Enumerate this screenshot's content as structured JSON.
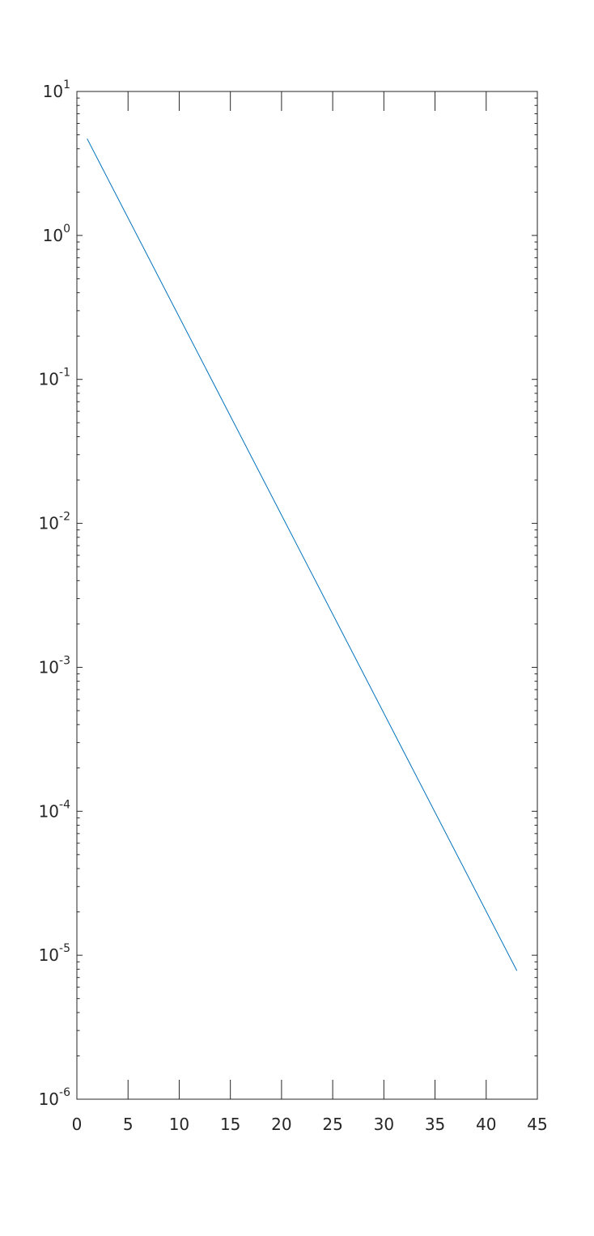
{
  "chart_data": {
    "type": "line",
    "title": "",
    "xlabel": "",
    "ylabel": "",
    "xlim": [
      0,
      45
    ],
    "ylim": [
      1e-06,
      10
    ],
    "yscale": "log",
    "grid": false,
    "x_ticks": [
      0,
      5,
      10,
      15,
      20,
      25,
      30,
      35,
      40,
      45
    ],
    "x_tick_labels": [
      "0",
      "5",
      "10",
      "15",
      "20",
      "25",
      "30",
      "35",
      "40",
      "45"
    ],
    "y_ticks": [
      {
        "value": 10,
        "base": "10",
        "exp": "1"
      },
      {
        "value": 1,
        "base": "10",
        "exp": "0"
      },
      {
        "value": 0.1,
        "base": "10",
        "exp": "-1"
      },
      {
        "value": 0.01,
        "base": "10",
        "exp": "-2"
      },
      {
        "value": 0.001,
        "base": "10",
        "exp": "-3"
      },
      {
        "value": 0.0001,
        "base": "10",
        "exp": "-4"
      },
      {
        "value": 1e-05,
        "base": "10",
        "exp": "-5"
      },
      {
        "value": 1e-06,
        "base": "10",
        "exp": "-6"
      }
    ],
    "series": [
      {
        "color": "#0072BD",
        "x": [
          1,
          43
        ],
        "y": [
          4.7,
          7.8e-06
        ]
      }
    ]
  }
}
